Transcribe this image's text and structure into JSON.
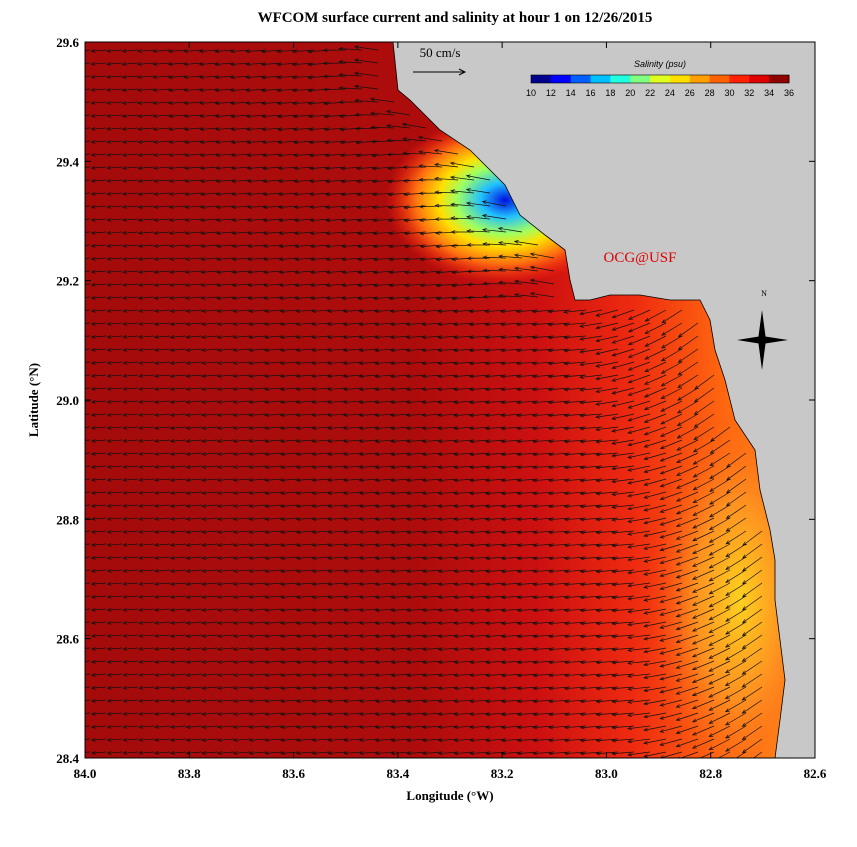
{
  "title": "WFCOM surface current and salinity at hour 1 on 12/26/2015",
  "x_axis": {
    "label": "Longitude (°W)",
    "lim": [
      84.0,
      82.6
    ],
    "ticks": [
      {
        "value": 84.0,
        "label": "84.0"
      },
      83.8,
      83.6,
      83.4,
      83.2,
      {
        "value": 83.0,
        "label": "83.0"
      },
      82.8,
      82.6
    ]
  },
  "y_axis": {
    "label": "Latitude (°N)",
    "lim": [
      28.4,
      29.6
    ],
    "ticks": [
      28.4,
      28.6,
      28.8,
      {
        "value": 29.0,
        "label": "29.0"
      },
      29.2,
      29.4,
      29.6
    ]
  },
  "colorbar": {
    "title": "Salinity (psu)",
    "lim": [
      10,
      36
    ],
    "ticks": [
      10,
      12,
      14,
      16,
      18,
      20,
      22,
      24,
      26,
      28,
      30,
      32,
      34,
      36
    ],
    "colors": [
      "#00008f",
      "#0000ff",
      "#0060ff",
      "#00bfff",
      "#20ffdf",
      "#80ff80",
      "#dfff20",
      "#ffdf00",
      "#ffa000",
      "#ff6000",
      "#ff2000",
      "#df0000",
      "#8f0000"
    ]
  },
  "scale_label": "50 cm/s",
  "credit": "OCG@USF",
  "compass_label": "N"
}
